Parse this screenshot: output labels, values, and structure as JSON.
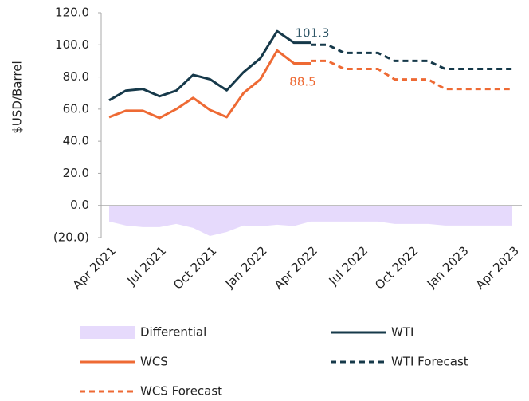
{
  "chart_data": {
    "type": "line",
    "y_label": "$USD/Barrel",
    "categories": [
      "Apr 2021",
      null,
      null,
      "Jul 2021",
      null,
      null,
      "Oct 2021",
      null,
      null,
      "Jan 2022",
      null,
      null,
      "Apr 2022",
      null,
      null,
      "Jul 2022",
      null,
      null,
      "Oct 2022",
      null,
      null,
      "Jan 2023",
      null,
      null,
      "Apr 2023"
    ],
    "ylim": [
      -20,
      120
    ],
    "yticks": [
      {
        "value": -20,
        "label": "(20.0)"
      },
      {
        "value": 0,
        "label": "0.0"
      },
      {
        "value": 20,
        "label": "20.0"
      },
      {
        "value": 40,
        "label": "40.0"
      },
      {
        "value": 60,
        "label": "60.0"
      },
      {
        "value": 80,
        "label": "80.0"
      },
      {
        "value": 100,
        "label": "100.0"
      },
      {
        "value": 120,
        "label": "120.0"
      }
    ],
    "series": [
      {
        "name": "Differential",
        "kind": "area",
        "color": "#e6dafc",
        "values": [
          -10,
          -12.5,
          -13.5,
          -13.5,
          -11.5,
          -14,
          -19,
          -16.5,
          -12.5,
          -13,
          -12,
          -12.8,
          -10,
          -10,
          -10,
          -10,
          -10,
          -11.5,
          -11.5,
          -11.5,
          -12.5,
          -12.5,
          -12.5,
          -12.5,
          -12.5
        ]
      },
      {
        "name": "WTI",
        "kind": "line",
        "color": "#16394a",
        "dashed": false,
        "values": [
          65.5,
          71.5,
          72.5,
          68,
          71.5,
          81.3,
          78.6,
          71.7,
          83,
          91.6,
          108.5,
          101.3,
          101.3,
          null,
          null,
          null,
          null,
          null,
          null,
          null,
          null,
          null,
          null,
          null,
          null
        ]
      },
      {
        "name": "WCS",
        "kind": "line",
        "color": "#ee6a34",
        "dashed": false,
        "values": [
          55,
          59,
          59,
          54.5,
          60,
          67,
          59.5,
          55,
          70,
          78.5,
          96.5,
          88.5,
          88.5,
          null,
          null,
          null,
          null,
          null,
          null,
          null,
          null,
          null,
          null,
          null,
          null
        ]
      },
      {
        "name": "WTI Forecast",
        "kind": "line",
        "color": "#16394a",
        "dashed": true,
        "values": [
          null,
          null,
          null,
          null,
          null,
          null,
          null,
          null,
          null,
          null,
          null,
          null,
          100,
          100,
          95,
          95,
          95,
          90,
          90,
          90,
          85,
          85,
          85,
          85,
          85
        ]
      },
      {
        "name": "WCS Forecast",
        "kind": "line",
        "color": "#ee6a34",
        "dashed": true,
        "values": [
          null,
          null,
          null,
          null,
          null,
          null,
          null,
          null,
          null,
          null,
          null,
          null,
          90,
          90,
          85,
          85,
          85,
          78.5,
          78.5,
          78.5,
          72.5,
          72.5,
          72.5,
          72.5,
          72.5
        ]
      }
    ],
    "annotations": [
      {
        "text": "101.3",
        "color": "#2d5566"
      },
      {
        "text": "88.5",
        "color": "#ee6a34"
      }
    ]
  }
}
